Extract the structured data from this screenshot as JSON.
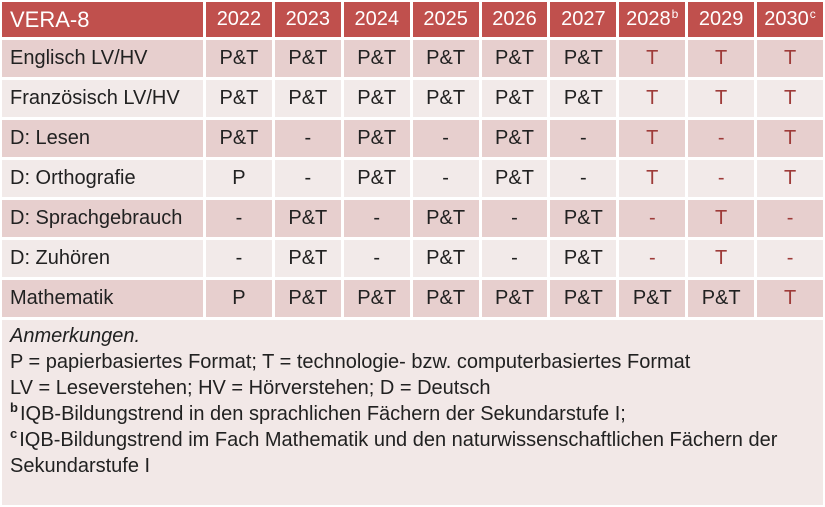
{
  "colors": {
    "header_bg": "#c0504d",
    "header_text": "#ffffff",
    "band_dark": "#e7cfce",
    "band_light": "#f2eae9",
    "notes_bg": "#f2e8e7",
    "value_text": "#212121",
    "highlight_red": "#9e3b39"
  },
  "table": {
    "title": "VERA-8",
    "columns": [
      {
        "label": "2022",
        "sup": ""
      },
      {
        "label": "2023",
        "sup": ""
      },
      {
        "label": "2024",
        "sup": ""
      },
      {
        "label": "2025",
        "sup": ""
      },
      {
        "label": "2026",
        "sup": ""
      },
      {
        "label": "2027",
        "sup": ""
      },
      {
        "label": "2028",
        "sup": "b"
      },
      {
        "label": "2029",
        "sup": ""
      },
      {
        "label": "2030",
        "sup": "c"
      }
    ],
    "rows": [
      {
        "label": "Englisch LV/HV",
        "band": "dark",
        "cells": [
          {
            "v": "P&T",
            "red": false
          },
          {
            "v": "P&T",
            "red": false
          },
          {
            "v": "P&T",
            "red": false
          },
          {
            "v": "P&T",
            "red": false
          },
          {
            "v": "P&T",
            "red": false
          },
          {
            "v": "P&T",
            "red": false
          },
          {
            "v": "T",
            "red": true
          },
          {
            "v": "T",
            "red": true
          },
          {
            "v": "T",
            "red": true
          }
        ]
      },
      {
        "label": "Französisch LV/HV",
        "band": "light",
        "cells": [
          {
            "v": "P&T",
            "red": false
          },
          {
            "v": "P&T",
            "red": false
          },
          {
            "v": "P&T",
            "red": false
          },
          {
            "v": "P&T",
            "red": false
          },
          {
            "v": "P&T",
            "red": false
          },
          {
            "v": "P&T",
            "red": false
          },
          {
            "v": "T",
            "red": true
          },
          {
            "v": "T",
            "red": true
          },
          {
            "v": "T",
            "red": true
          }
        ]
      },
      {
        "label": "D: Lesen",
        "band": "dark",
        "cells": [
          {
            "v": "P&T",
            "red": false
          },
          {
            "v": "-",
            "red": false
          },
          {
            "v": "P&T",
            "red": false
          },
          {
            "v": "-",
            "red": false
          },
          {
            "v": "P&T",
            "red": false
          },
          {
            "v": "-",
            "red": false
          },
          {
            "v": "T",
            "red": true
          },
          {
            "v": "-",
            "red": true
          },
          {
            "v": "T",
            "red": true
          }
        ]
      },
      {
        "label": "D: Orthografie",
        "band": "light",
        "cells": [
          {
            "v": "P",
            "red": false
          },
          {
            "v": "-",
            "red": false
          },
          {
            "v": "P&T",
            "red": false
          },
          {
            "v": "-",
            "red": false
          },
          {
            "v": "P&T",
            "red": false
          },
          {
            "v": "-",
            "red": false
          },
          {
            "v": "T",
            "red": true
          },
          {
            "v": "-",
            "red": true
          },
          {
            "v": "T",
            "red": true
          }
        ]
      },
      {
        "label": "D: Sprachgebrauch",
        "band": "dark",
        "cells": [
          {
            "v": "-",
            "red": false
          },
          {
            "v": "P&T",
            "red": false
          },
          {
            "v": "-",
            "red": false
          },
          {
            "v": "P&T",
            "red": false
          },
          {
            "v": "-",
            "red": false
          },
          {
            "v": "P&T",
            "red": false
          },
          {
            "v": "-",
            "red": true
          },
          {
            "v": "T",
            "red": true
          },
          {
            "v": "-",
            "red": true
          }
        ]
      },
      {
        "label": "D: Zuhören",
        "band": "light",
        "cells": [
          {
            "v": "-",
            "red": false
          },
          {
            "v": "P&T",
            "red": false
          },
          {
            "v": "-",
            "red": false
          },
          {
            "v": "P&T",
            "red": false
          },
          {
            "v": "-",
            "red": false
          },
          {
            "v": "P&T",
            "red": false
          },
          {
            "v": "-",
            "red": true
          },
          {
            "v": "T",
            "red": true
          },
          {
            "v": "-",
            "red": true
          }
        ]
      },
      {
        "label": "Mathematik",
        "band": "dark",
        "cells": [
          {
            "v": "P",
            "red": false
          },
          {
            "v": "P&T",
            "red": false
          },
          {
            "v": "P&T",
            "red": false
          },
          {
            "v": "P&T",
            "red": false
          },
          {
            "v": "P&T",
            "red": false
          },
          {
            "v": "P&T",
            "red": false
          },
          {
            "v": "P&T",
            "red": false
          },
          {
            "v": "P&T",
            "red": false
          },
          {
            "v": "T",
            "red": true
          }
        ]
      }
    ]
  },
  "notes": {
    "heading": "Anmerkungen.",
    "lines": [
      {
        "marker": "",
        "text": "P = papierbasiertes Format; T = technologie- bzw. computerbasiertes Format"
      },
      {
        "marker": "",
        "text": "LV = Leseverstehen; HV = Hörverstehen; D = Deutsch"
      },
      {
        "marker": "b",
        "text": "IQB-Bildungstrend in den sprachlichen Fächern der Sekundarstufe I;"
      },
      {
        "marker": "c",
        "text": "IQB-Bildungstrend im Fach Mathematik und den naturwissenschaftlichen Fächern der Sekundarstufe I"
      }
    ]
  }
}
